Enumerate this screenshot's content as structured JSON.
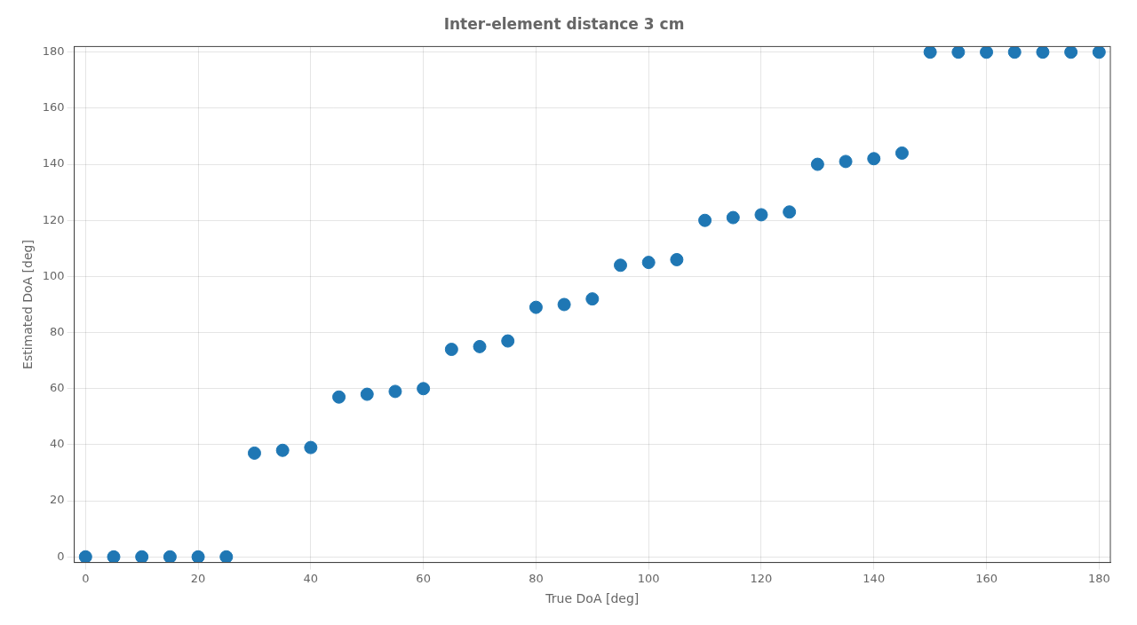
{
  "chart_data": {
    "type": "scatter",
    "title": "Inter-element distance 3 cm",
    "xlabel": "True DoA [deg]",
    "ylabel": "Estimated DoA [deg]",
    "x": [
      0,
      5,
      10,
      15,
      20,
      25,
      30,
      35,
      40,
      45,
      50,
      55,
      60,
      65,
      70,
      75,
      80,
      85,
      90,
      95,
      100,
      105,
      110,
      115,
      120,
      125,
      130,
      135,
      140,
      145,
      150,
      155,
      160,
      165,
      170,
      175,
      180
    ],
    "values": [
      0,
      0,
      0,
      0,
      0,
      0,
      37,
      38,
      39,
      57,
      58,
      59,
      60,
      74,
      75,
      77,
      89,
      90,
      92,
      104,
      105,
      106,
      120,
      121,
      122,
      123,
      140,
      141,
      142,
      144,
      180,
      180,
      180,
      180,
      180,
      180,
      180
    ],
    "color": "#1f77b4",
    "xlim": [
      -2,
      182
    ],
    "ylim": [
      -2,
      182
    ],
    "xticks": [
      0,
      20,
      40,
      60,
      80,
      100,
      120,
      140,
      160,
      180
    ],
    "yticks": [
      0,
      20,
      40,
      60,
      80,
      100,
      120,
      140,
      160,
      180
    ],
    "grid": true
  }
}
